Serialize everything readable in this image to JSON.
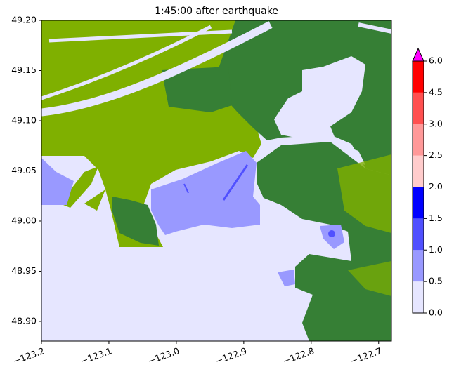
{
  "chart_data": {
    "type": "map",
    "title": "1:45:00 after earthquake",
    "xlim": [
      -123.2,
      -122.681
    ],
    "ylim": [
      48.8804,
      49.2
    ],
    "xticks": [
      {
        "value": -123.2,
        "label": "−123.2"
      },
      {
        "value": -123.1,
        "label": "−123.1"
      },
      {
        "value": -123.0,
        "label": "−123.0"
      },
      {
        "value": -122.9,
        "label": "−122.9"
      },
      {
        "value": -122.8,
        "label": "−122.8"
      },
      {
        "value": -122.7,
        "label": "−122.7"
      }
    ],
    "yticks": [
      {
        "value": 48.9,
        "label": "48.90"
      },
      48.95,
      {
        "value": 49.0,
        "label": "49.00"
      },
      49.05,
      {
        "value": 49.1,
        "label": "49.10"
      },
      49.15,
      {
        "value": 49.2,
        "label": "49.20"
      }
    ],
    "colorbar": {
      "ticks": [
        {
          "value": 0,
          "label": "0.0"
        },
        0.5,
        {
          "value": 1,
          "label": "1.0"
        },
        1.5,
        {
          "value": 2,
          "label": "2.0"
        },
        2.5,
        {
          "value": 3,
          "label": "3.0"
        },
        4.5,
        {
          "value": 6,
          "label": "6.0"
        }
      ],
      "colors": [
        "#e6e6ff",
        "#9999ff",
        "#5050ff",
        "#0000ff",
        "#ffcccc",
        "#ff9999",
        "#ff5050",
        "#ff0000"
      ],
      "extend_color": "#ff00ff"
    }
  }
}
